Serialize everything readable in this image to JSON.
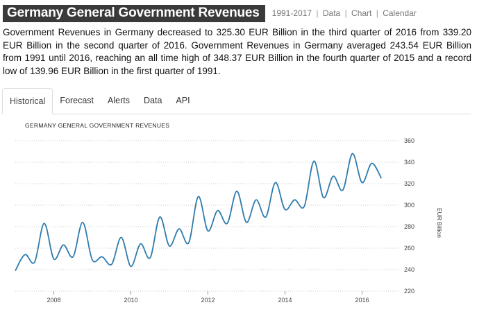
{
  "header": {
    "title": "Germany General Government Revenues",
    "range": "1991-2017",
    "links": [
      "Data",
      "Chart",
      "Calendar"
    ]
  },
  "description": "Government Revenues in Germany decreased to 325.30 EUR Billion in the third quarter of 2016 from 339.20 EUR Billion in the second quarter of 2016. Government Revenues in Germany averaged 243.54 EUR Billion from 1991 until 2016, reaching an all time high of 348.37 EUR Billion in the fourth quarter of 2015 and a record low of 139.96 EUR Billion in the first quarter of 1991.",
  "tabs": [
    {
      "label": "Historical",
      "active": true
    },
    {
      "label": "Forecast",
      "active": false
    },
    {
      "label": "Alerts",
      "active": false
    },
    {
      "label": "Data",
      "active": false
    },
    {
      "label": "API",
      "active": false
    }
  ],
  "colors": {
    "line": "#2e7cad",
    "grid": "#cccccc"
  },
  "chart_data": {
    "type": "line",
    "title": "GERMANY GENERAL GOVERNMENT REVENUES",
    "xlabel": "",
    "ylabel": "EUR Billion",
    "grid": true,
    "ylim": [
      220,
      360
    ],
    "xlim": [
      2007.0,
      2017.0
    ],
    "yticks": [
      220,
      240,
      260,
      280,
      300,
      320,
      340,
      360
    ],
    "xticks": [
      2008,
      2010,
      2012,
      2014,
      2016
    ],
    "series": [
      {
        "name": "Government Revenues",
        "x": [
          2007.0,
          2007.25,
          2007.5,
          2007.75,
          2008.0,
          2008.25,
          2008.5,
          2008.75,
          2009.0,
          2009.25,
          2009.5,
          2009.75,
          2010.0,
          2010.25,
          2010.5,
          2010.75,
          2011.0,
          2011.25,
          2011.5,
          2011.75,
          2012.0,
          2012.25,
          2012.5,
          2012.75,
          2013.0,
          2013.25,
          2013.5,
          2013.75,
          2014.0,
          2014.25,
          2014.5,
          2014.75,
          2015.0,
          2015.25,
          2015.5,
          2015.75,
          2016.0,
          2016.25,
          2016.5
        ],
        "values": [
          239,
          254,
          247,
          283,
          250,
          263,
          252,
          284,
          249,
          252,
          245,
          270,
          243,
          264,
          251,
          289,
          262,
          278,
          265,
          308,
          276,
          295,
          283,
          313,
          284,
          305,
          289,
          321,
          296,
          305,
          299,
          341,
          307,
          327,
          314,
          348,
          321,
          339,
          325
        ]
      }
    ]
  }
}
